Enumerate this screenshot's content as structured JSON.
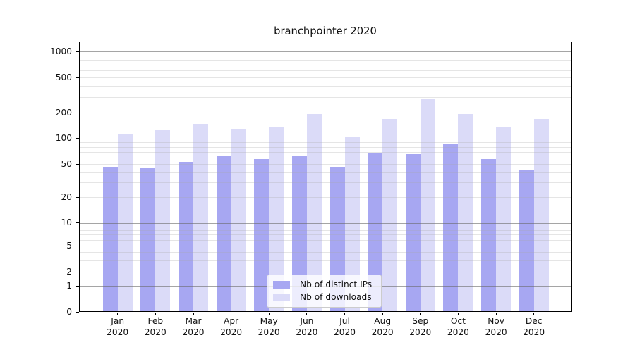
{
  "title": "branchpointer 2020",
  "legend": {
    "items": [
      {
        "label": "Nb of distinct IPs",
        "color": "#a7a7f2"
      },
      {
        "label": "Nb of downloads",
        "color": "#dbdbf8"
      }
    ]
  },
  "colors": {
    "distinct_ips_bar": "#a7a7f2",
    "downloads_bar": "#dbdbf8",
    "major_gridline": "#9b9b9b",
    "minor_gridline": "#e2e2e2",
    "axis": "#000000"
  },
  "chart_data": {
    "type": "bar",
    "title": "branchpointer 2020",
    "categories": [
      "Jan 2020",
      "Feb 2020",
      "Mar 2020",
      "Apr 2020",
      "May 2020",
      "Jun 2020",
      "Jul 2020",
      "Aug 2020",
      "Sep 2020",
      "Oct 2020",
      "Nov 2020",
      "Dec 2020"
    ],
    "series": [
      {
        "name": "Nb of distinct IPs",
        "color": "#a7a7f2",
        "values": [
          47,
          46,
          53,
          63,
          57,
          63,
          47,
          68,
          66,
          85,
          58,
          43
        ]
      },
      {
        "name": "Nb of downloads",
        "color": "#dbdbf8",
        "values": [
          112,
          124,
          148,
          130,
          135,
          192,
          106,
          170,
          288,
          192,
          134,
          168
        ]
      }
    ],
    "xlabel": "",
    "ylabel": "",
    "y_scale": "symlog",
    "y_tick_labels": [
      "0",
      "1",
      "2",
      "5",
      "10",
      "20",
      "50",
      "100",
      "200",
      "500",
      "1000"
    ],
    "ylim": [
      0,
      1400
    ],
    "grid": "on",
    "legend_position": "lower center inside plot"
  }
}
